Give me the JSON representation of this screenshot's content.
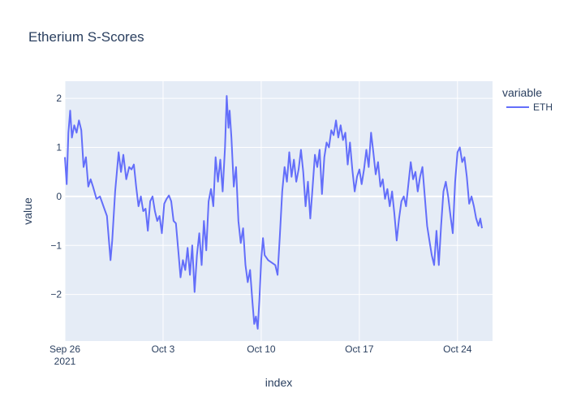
{
  "chart_data": {
    "type": "line",
    "title": "Etherium S-Scores",
    "xlabel": "index",
    "ylabel": "value",
    "x_range": [
      "2021-09-26",
      "2021-10-26T12:00"
    ],
    "ylim": [
      -2.95,
      2.35
    ],
    "x_ticks": [
      {
        "date": "2021-09-26",
        "label": "Sep 26",
        "sublabel": "2021"
      },
      {
        "date": "2021-10-03",
        "label": "Oct 3",
        "sublabel": ""
      },
      {
        "date": "2021-10-10",
        "label": "Oct 10",
        "sublabel": ""
      },
      {
        "date": "2021-10-17",
        "label": "Oct 17",
        "sublabel": ""
      },
      {
        "date": "2021-10-24",
        "label": "Oct 24",
        "sublabel": ""
      }
    ],
    "y_ticks": [
      {
        "value": 2,
        "label": "2"
      },
      {
        "value": 1,
        "label": "1"
      },
      {
        "value": 0,
        "label": "0"
      },
      {
        "value": -1,
        "label": "−1"
      },
      {
        "value": -2,
        "label": "−2"
      }
    ],
    "grid": true,
    "legend": {
      "title": "variable",
      "position": "right"
    },
    "series": [
      {
        "name": "ETH",
        "color": "#636efa",
        "points": [
          [
            "2021-09-26T00:00",
            0.8
          ],
          [
            "2021-09-26T03:00",
            0.25
          ],
          [
            "2021-09-26T06:00",
            1.3
          ],
          [
            "2021-09-26T09:00",
            1.75
          ],
          [
            "2021-09-26T12:00",
            1.2
          ],
          [
            "2021-09-26T16:00",
            1.45
          ],
          [
            "2021-09-26T20:00",
            1.3
          ],
          [
            "2021-09-27T00:00",
            1.55
          ],
          [
            "2021-09-27T04:00",
            1.35
          ],
          [
            "2021-09-27T08:00",
            0.6
          ],
          [
            "2021-09-27T12:00",
            0.8
          ],
          [
            "2021-09-27T16:00",
            0.2
          ],
          [
            "2021-09-27T20:00",
            0.35
          ],
          [
            "2021-09-28T00:00",
            0.2
          ],
          [
            "2021-09-28T06:00",
            -0.05
          ],
          [
            "2021-09-28T12:00",
            0.0
          ],
          [
            "2021-09-28T18:00",
            -0.2
          ],
          [
            "2021-09-29T00:00",
            -0.4
          ],
          [
            "2021-09-29T06:00",
            -1.3
          ],
          [
            "2021-09-29T09:00",
            -0.9
          ],
          [
            "2021-09-29T14:00",
            0.1
          ],
          [
            "2021-09-29T20:00",
            0.9
          ],
          [
            "2021-09-30T00:00",
            0.5
          ],
          [
            "2021-09-30T04:00",
            0.85
          ],
          [
            "2021-09-30T09:00",
            0.35
          ],
          [
            "2021-09-30T14:00",
            0.6
          ],
          [
            "2021-09-30T18:00",
            0.55
          ],
          [
            "2021-09-30T22:00",
            0.65
          ],
          [
            "2021-10-01T02:00",
            0.2
          ],
          [
            "2021-10-01T06:00",
            -0.2
          ],
          [
            "2021-10-01T10:00",
            0.0
          ],
          [
            "2021-10-01T14:00",
            -0.3
          ],
          [
            "2021-10-01T18:00",
            -0.25
          ],
          [
            "2021-10-01T22:00",
            -0.7
          ],
          [
            "2021-10-02T02:00",
            -0.1
          ],
          [
            "2021-10-02T06:00",
            0.0
          ],
          [
            "2021-10-02T10:00",
            -0.3
          ],
          [
            "2021-10-02T14:00",
            -0.5
          ],
          [
            "2021-10-02T18:00",
            -0.4
          ],
          [
            "2021-10-02T22:00",
            -0.75
          ],
          [
            "2021-10-03T02:00",
            -0.15
          ],
          [
            "2021-10-03T06:00",
            -0.05
          ],
          [
            "2021-10-03T10:00",
            0.02
          ],
          [
            "2021-10-03T14:00",
            -0.1
          ],
          [
            "2021-10-03T18:00",
            -0.5
          ],
          [
            "2021-10-03T22:00",
            -0.55
          ],
          [
            "2021-10-04T02:00",
            -1.1
          ],
          [
            "2021-10-04T06:00",
            -1.65
          ],
          [
            "2021-10-04T10:00",
            -1.3
          ],
          [
            "2021-10-04T14:00",
            -1.5
          ],
          [
            "2021-10-04T18:00",
            -1.05
          ],
          [
            "2021-10-04T22:00",
            -1.6
          ],
          [
            "2021-10-05T02:00",
            -1.0
          ],
          [
            "2021-10-05T06:00",
            -1.95
          ],
          [
            "2021-10-05T10:00",
            -1.2
          ],
          [
            "2021-10-05T14:00",
            -0.75
          ],
          [
            "2021-10-05T18:00",
            -1.4
          ],
          [
            "2021-10-05T22:00",
            -0.5
          ],
          [
            "2021-10-06T02:00",
            -1.1
          ],
          [
            "2021-10-06T06:00",
            -0.1
          ],
          [
            "2021-10-06T10:00",
            0.15
          ],
          [
            "2021-10-06T14:00",
            -0.2
          ],
          [
            "2021-10-06T18:00",
            0.8
          ],
          [
            "2021-10-06T22:00",
            0.3
          ],
          [
            "2021-10-07T02:00",
            0.75
          ],
          [
            "2021-10-07T06:00",
            0.1
          ],
          [
            "2021-10-07T10:00",
            1.0
          ],
          [
            "2021-10-07T13:00",
            2.05
          ],
          [
            "2021-10-07T16:00",
            1.4
          ],
          [
            "2021-10-07T18:00",
            1.75
          ],
          [
            "2021-10-07T21:00",
            1.2
          ],
          [
            "2021-10-08T01:00",
            0.2
          ],
          [
            "2021-10-08T05:00",
            0.6
          ],
          [
            "2021-10-08T09:00",
            -0.5
          ],
          [
            "2021-10-08T13:00",
            -0.95
          ],
          [
            "2021-10-08T17:00",
            -0.65
          ],
          [
            "2021-10-08T21:00",
            -1.4
          ],
          [
            "2021-10-09T01:00",
            -1.75
          ],
          [
            "2021-10-09T05:00",
            -1.5
          ],
          [
            "2021-10-09T09:00",
            -2.15
          ],
          [
            "2021-10-09T12:00",
            -2.6
          ],
          [
            "2021-10-09T15:00",
            -2.45
          ],
          [
            "2021-10-09T18:00",
            -2.7
          ],
          [
            "2021-10-09T21:00",
            -2.1
          ],
          [
            "2021-10-10T00:00",
            -1.3
          ],
          [
            "2021-10-10T03:00",
            -0.85
          ],
          [
            "2021-10-10T06:00",
            -1.2
          ],
          [
            "2021-10-10T12:00",
            -1.3
          ],
          [
            "2021-10-10T18:00",
            -1.35
          ],
          [
            "2021-10-11T00:00",
            -1.4
          ],
          [
            "2021-10-11T04:00",
            -1.6
          ],
          [
            "2021-10-11T08:00",
            -0.8
          ],
          [
            "2021-10-11T12:00",
            0.1
          ],
          [
            "2021-10-11T16:00",
            0.6
          ],
          [
            "2021-10-11T20:00",
            0.3
          ],
          [
            "2021-10-12T00:00",
            0.9
          ],
          [
            "2021-10-12T04:00",
            0.4
          ],
          [
            "2021-10-12T08:00",
            0.75
          ],
          [
            "2021-10-12T12:00",
            0.3
          ],
          [
            "2021-10-12T16:00",
            0.55
          ],
          [
            "2021-10-12T20:00",
            0.95
          ],
          [
            "2021-10-13T00:00",
            0.5
          ],
          [
            "2021-10-13T04:00",
            -0.2
          ],
          [
            "2021-10-13T08:00",
            0.3
          ],
          [
            "2021-10-13T12:00",
            -0.45
          ],
          [
            "2021-10-13T16:00",
            0.2
          ],
          [
            "2021-10-13T20:00",
            0.85
          ],
          [
            "2021-10-14T00:00",
            0.6
          ],
          [
            "2021-10-14T04:00",
            0.95
          ],
          [
            "2021-10-14T08:00",
            0.05
          ],
          [
            "2021-10-14T12:00",
            0.8
          ],
          [
            "2021-10-14T16:00",
            1.1
          ],
          [
            "2021-10-14T20:00",
            1.0
          ],
          [
            "2021-10-15T00:00",
            1.35
          ],
          [
            "2021-10-15T04:00",
            1.25
          ],
          [
            "2021-10-15T08:00",
            1.55
          ],
          [
            "2021-10-15T12:00",
            1.2
          ],
          [
            "2021-10-15T16:00",
            1.45
          ],
          [
            "2021-10-15T20:00",
            1.15
          ],
          [
            "2021-10-16T00:00",
            1.3
          ],
          [
            "2021-10-16T04:00",
            0.65
          ],
          [
            "2021-10-16T08:00",
            1.1
          ],
          [
            "2021-10-16T12:00",
            0.55
          ],
          [
            "2021-10-16T16:00",
            0.1
          ],
          [
            "2021-10-16T20:00",
            0.4
          ],
          [
            "2021-10-17T00:00",
            0.55
          ],
          [
            "2021-10-17T04:00",
            0.25
          ],
          [
            "2021-10-17T08:00",
            0.55
          ],
          [
            "2021-10-17T12:00",
            0.95
          ],
          [
            "2021-10-17T16:00",
            0.6
          ],
          [
            "2021-10-17T20:00",
            1.3
          ],
          [
            "2021-10-18T00:00",
            0.9
          ],
          [
            "2021-10-18T04:00",
            0.45
          ],
          [
            "2021-10-18T08:00",
            0.7
          ],
          [
            "2021-10-18T12:00",
            0.2
          ],
          [
            "2021-10-18T16:00",
            0.35
          ],
          [
            "2021-10-18T20:00",
            -0.05
          ],
          [
            "2021-10-19T00:00",
            0.15
          ],
          [
            "2021-10-19T04:00",
            -0.2
          ],
          [
            "2021-10-19T08:00",
            0.1
          ],
          [
            "2021-10-19T12:00",
            -0.35
          ],
          [
            "2021-10-19T16:00",
            -0.9
          ],
          [
            "2021-10-19T20:00",
            -0.45
          ],
          [
            "2021-10-20T00:00",
            -0.1
          ],
          [
            "2021-10-20T04:00",
            0.0
          ],
          [
            "2021-10-20T08:00",
            -0.2
          ],
          [
            "2021-10-20T12:00",
            0.25
          ],
          [
            "2021-10-20T16:00",
            0.7
          ],
          [
            "2021-10-20T20:00",
            0.35
          ],
          [
            "2021-10-21T00:00",
            0.5
          ],
          [
            "2021-10-21T04:00",
            0.1
          ],
          [
            "2021-10-21T08:00",
            0.4
          ],
          [
            "2021-10-21T12:00",
            0.6
          ],
          [
            "2021-10-21T16:00",
            0.0
          ],
          [
            "2021-10-21T20:00",
            -0.6
          ],
          [
            "2021-10-22T00:00",
            -0.9
          ],
          [
            "2021-10-22T04:00",
            -1.2
          ],
          [
            "2021-10-22T08:00",
            -1.4
          ],
          [
            "2021-10-22T12:00",
            -0.7
          ],
          [
            "2021-10-22T16:00",
            -1.4
          ],
          [
            "2021-10-22T20:00",
            -0.6
          ],
          [
            "2021-10-23T00:00",
            0.1
          ],
          [
            "2021-10-23T04:00",
            0.3
          ],
          [
            "2021-10-23T08:00",
            0.0
          ],
          [
            "2021-10-23T12:00",
            -0.4
          ],
          [
            "2021-10-23T16:00",
            -0.75
          ],
          [
            "2021-10-23T20:00",
            0.3
          ],
          [
            "2021-10-24T00:00",
            0.9
          ],
          [
            "2021-10-24T04:00",
            1.0
          ],
          [
            "2021-10-24T08:00",
            0.7
          ],
          [
            "2021-10-24T12:00",
            0.8
          ],
          [
            "2021-10-24T16:00",
            0.4
          ],
          [
            "2021-10-24T20:00",
            -0.15
          ],
          [
            "2021-10-25T00:00",
            0.0
          ],
          [
            "2021-10-25T04:00",
            -0.2
          ],
          [
            "2021-10-25T08:00",
            -0.45
          ],
          [
            "2021-10-25T12:00",
            -0.6
          ],
          [
            "2021-10-25T15:00",
            -0.45
          ],
          [
            "2021-10-25T18:00",
            -0.65
          ]
        ]
      }
    ]
  }
}
